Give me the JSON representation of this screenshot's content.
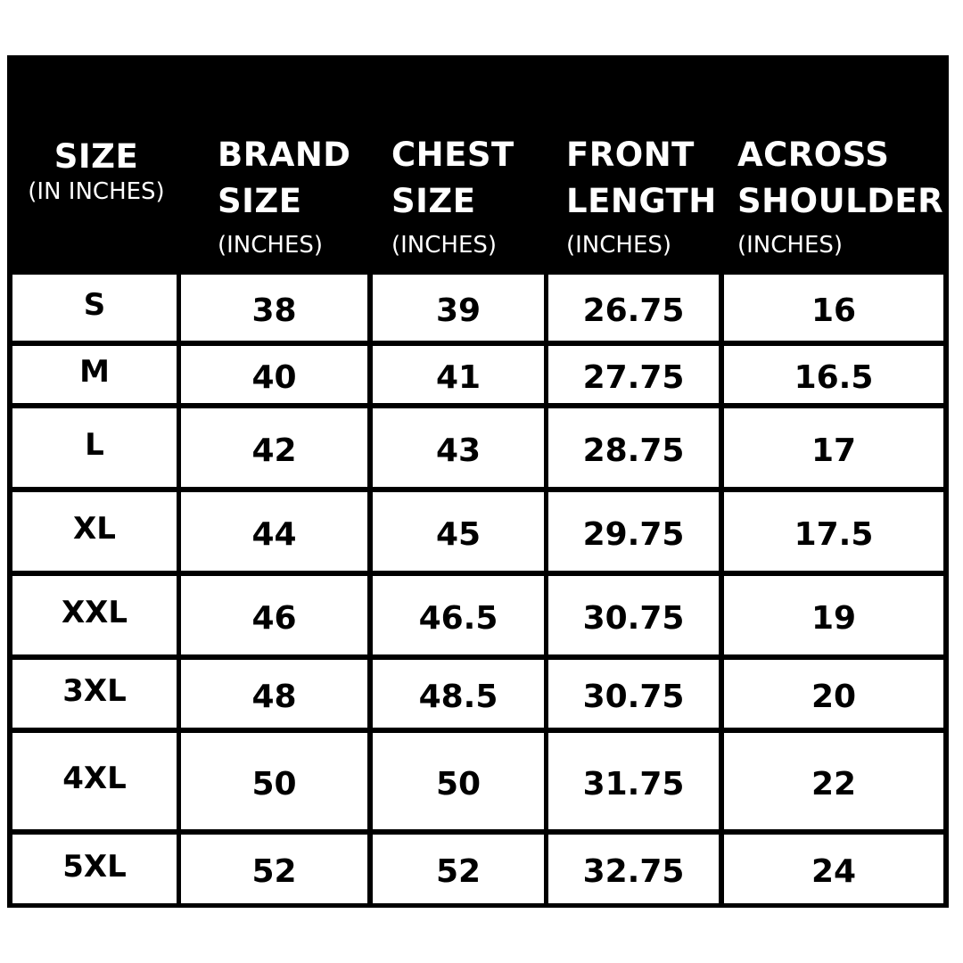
{
  "headers": [
    {
      "lines": [
        "SIZE"
      ],
      "sub": "(IN INCHES)"
    },
    {
      "lines": [
        "BRAND",
        "SIZE"
      ],
      "sub": "(INCHES)"
    },
    {
      "lines": [
        "CHEST",
        "SIZE"
      ],
      "sub": "(INCHES)"
    },
    {
      "lines": [
        "FRONT",
        "LENGTH"
      ],
      "sub": "(INCHES)"
    },
    {
      "lines": [
        "ACROSS",
        "SHOULDER"
      ],
      "sub": "(INCHES)"
    }
  ],
  "rows": [
    [
      "S",
      "38",
      "39",
      "26.75",
      "16"
    ],
    [
      "M",
      "40",
      "41",
      "27.75",
      "16.5"
    ],
    [
      "L",
      "42",
      "43",
      "28.75",
      "17"
    ],
    [
      "XL",
      "44",
      "45",
      "29.75",
      "17.5"
    ],
    [
      "XXL",
      "46",
      "46.5",
      "30.75",
      "19"
    ],
    [
      "3XL",
      "48",
      "48.5",
      "30.75",
      "20"
    ],
    [
      "4XL",
      "50",
      "50",
      "31.75",
      "22"
    ],
    [
      "5XL",
      "52",
      "52",
      "32.75",
      "24"
    ]
  ],
  "colors": {
    "header_bg": "#000000",
    "header_text": "#ffffff",
    "cell_bg": "#ffffff",
    "border": "#000000"
  }
}
